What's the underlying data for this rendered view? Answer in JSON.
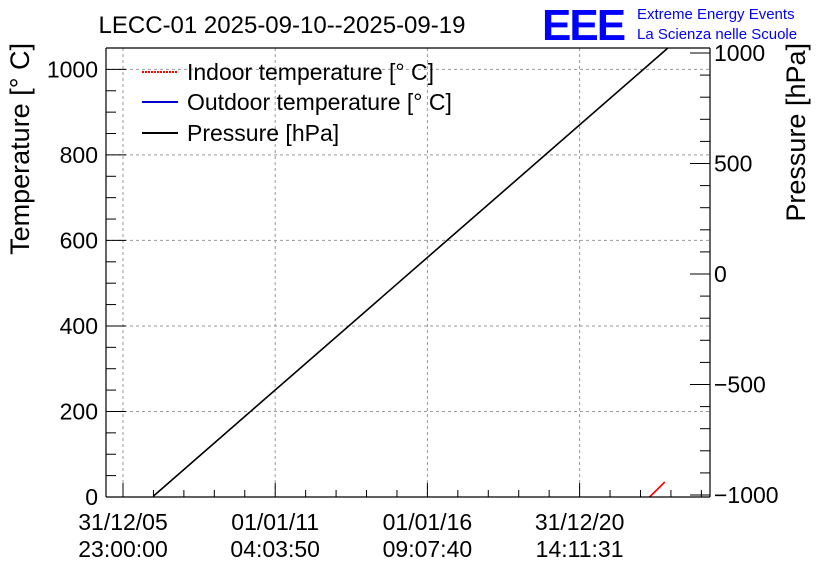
{
  "chart_data": {
    "type": "line",
    "title": "LECC-01 2025-09-10--2025-09-19",
    "ylabel_left": "Temperature [° C]",
    "ylabel_right": "Pressure [hPa]",
    "left_ylim": [
      0,
      1050
    ],
    "right_ylim": [
      -1000,
      1000
    ],
    "left_yticks": [
      0,
      200,
      400,
      600,
      800,
      1000
    ],
    "right_yticks": [
      -1000,
      -500,
      0,
      500,
      1000
    ],
    "grid": true,
    "legend_position": "top-left",
    "x_ticks": [
      {
        "date": "31/12/05",
        "time": "23:00:00"
      },
      {
        "date": "01/01/11",
        "time": "04:03:50"
      },
      {
        "date": "01/01/16",
        "time": "09:07:40"
      },
      {
        "date": "31/12/20",
        "time": "14:11:31"
      }
    ],
    "x_range": [
      0,
      19
    ],
    "x_tick_values": [
      0,
      5,
      10,
      15
    ],
    "series": [
      {
        "name": "Indoor temperature [° C]",
        "color": "#ff0000",
        "axis": "left",
        "x": [
          17.3,
          17.8
        ],
        "y": [
          0,
          35
        ]
      },
      {
        "name": "Outdoor temperature [° C]",
        "color": "#0000cc",
        "axis": "left",
        "x": [],
        "y": []
      },
      {
        "name": "Pressure [hPa]",
        "color": "#000000",
        "axis": "left",
        "x": [
          1,
          17.9
        ],
        "y": [
          2,
          1050
        ]
      }
    ]
  },
  "logo": {
    "mark": "EEE",
    "line1": "Extreme Energy Events",
    "line2": "La Scienza nelle Scuole",
    "color": "#0000ff"
  }
}
